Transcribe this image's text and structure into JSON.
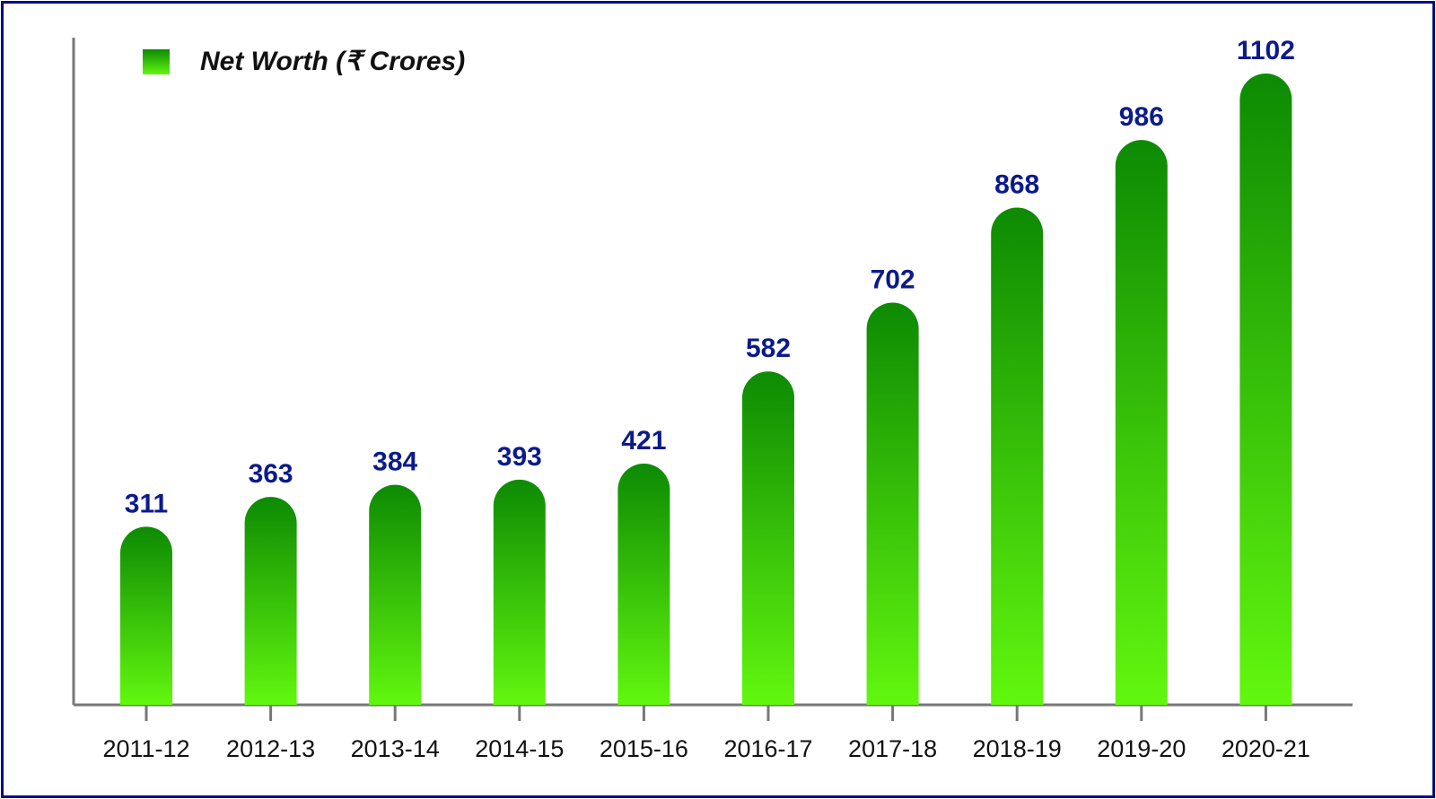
{
  "colors": {
    "frame": "#000e8c",
    "bar_top": "#0d8a03",
    "bar_bottom": "#62f70f",
    "value_label": "#0b1a8c",
    "axis": "#777777",
    "tick_label": "#111111"
  },
  "chart_data": {
    "type": "bar",
    "categories": [
      "2011-12",
      "2012-13",
      "2013-14",
      "2014-15",
      "2015-16",
      "2016-17",
      "2017-18",
      "2018-19",
      "2019-20",
      "2020-21"
    ],
    "series": [
      {
        "name": "Net Worth (₹ Crores)",
        "values": [
          311,
          363,
          384,
          393,
          421,
          582,
          702,
          868,
          986,
          1102
        ]
      }
    ],
    "data_labels": [
      "311",
      "363",
      "384",
      "393",
      "421",
      "582",
      "702",
      "868",
      "986",
      "1102"
    ],
    "legend": {
      "label": "Net Worth (₹ Crores)",
      "position": "top-left"
    },
    "grid": false
  }
}
